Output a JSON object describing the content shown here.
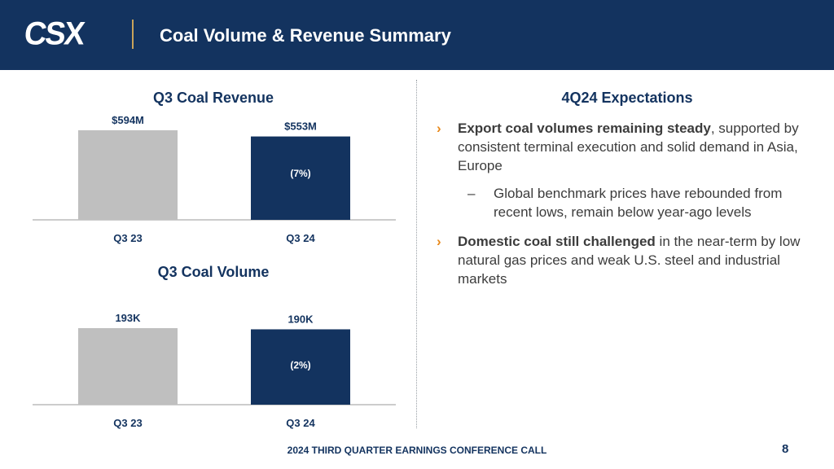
{
  "header": {
    "logo_text": "CSX",
    "title": "Coal Volume & Revenue Summary",
    "background": "#13335f"
  },
  "chart_data": [
    {
      "type": "bar",
      "title": "Q3 Coal Revenue",
      "categories": [
        "Q3 23",
        "Q3 24"
      ],
      "values": [
        594,
        553
      ],
      "value_labels": [
        "$594M",
        "$553M"
      ],
      "change_label": "(7%)",
      "colors": [
        "#bfbfbf",
        "#13335f"
      ],
      "ylim": [
        0,
        594
      ],
      "grid": false
    },
    {
      "type": "bar",
      "title": "Q3 Coal Volume",
      "categories": [
        "Q3 23",
        "Q3 24"
      ],
      "values": [
        193,
        190
      ],
      "value_labels": [
        "193K",
        "190K"
      ],
      "change_label": "(2%)",
      "colors": [
        "#bfbfbf",
        "#13335f"
      ],
      "ylim": [
        0,
        193
      ],
      "grid": false
    }
  ],
  "expectations": {
    "title": "4Q24 Expectations",
    "bullet1_bold": "Export coal volumes remaining steady",
    "bullet1_rest": ", supported by consistent terminal execution and solid demand in Asia, Europe",
    "sub_dash": "–",
    "sub1": "Global benchmark prices have rebounded from recent lows, remain below year-ago levels",
    "bullet2_bold": "Domestic coal still challenged",
    "bullet2_rest": " in the near-term by low natural gas prices and weak U.S. steel and industrial markets",
    "chevron": "›",
    "accent": "#e8891b"
  },
  "footer": {
    "text": "2024 THIRD QUARTER EARNINGS CONFERENCE CALL",
    "page_number": "8"
  }
}
